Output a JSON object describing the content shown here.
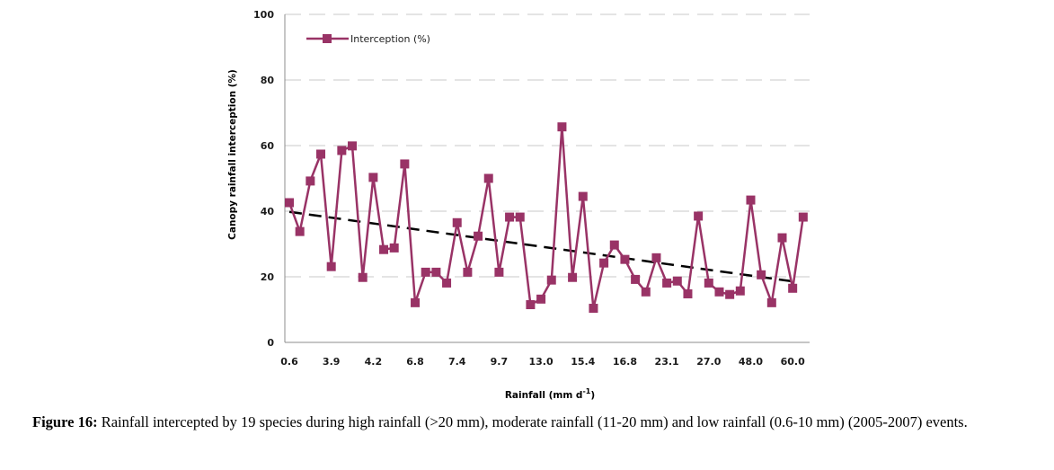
{
  "chart_data": {
    "type": "line",
    "title": "",
    "xlabel": "Rainfall (mm d",
    "xlabel_superscript": "-1",
    "xlabel_suffix": ")",
    "ylabel": "Canopy rainfall interception (%)",
    "ylim": [
      0,
      100
    ],
    "yticks": [
      0,
      20,
      40,
      60,
      80,
      100
    ],
    "grid": "horizontal dashed",
    "legend": {
      "position": "top-left",
      "entries": [
        "Interception (%)"
      ]
    },
    "x_tick_labels": [
      "0.6",
      "3.9",
      "4.2",
      "6.8",
      "7.4",
      "9.7",
      "13.0",
      "15.4",
      "16.8",
      "23.1",
      "27.0",
      "48.0",
      "60.0"
    ],
    "x_tick_every": 4,
    "series": [
      {
        "name": "Interception (%)",
        "color": "#993366",
        "marker": "square",
        "values": [
          42.6,
          33.8,
          49.2,
          57.4,
          23.1,
          58.5,
          59.9,
          19.8,
          50.3,
          28.3,
          28.8,
          54.4,
          12.1,
          21.4,
          21.4,
          18.1,
          36.5,
          21.4,
          32.4,
          50.0,
          21.4,
          38.2,
          38.2,
          11.5,
          13.2,
          19.0,
          65.7,
          19.8,
          44.5,
          10.4,
          24.2,
          29.7,
          25.3,
          19.2,
          15.4,
          25.8,
          18.1,
          18.7,
          14.8,
          38.5,
          18.1,
          15.4,
          14.6,
          15.7,
          43.4,
          20.6,
          12.1,
          31.9,
          16.5,
          38.2
        ]
      }
    ],
    "trendline": {
      "type": "linear",
      "style": "dashed",
      "color": "#000000",
      "start_value": 39.8,
      "end_value": 18.6,
      "start_index": 0,
      "end_index": 48
    }
  },
  "caption": {
    "label": "Figure 16:",
    "text": " Rainfall intercepted by 19 species during high rainfall (>20 mm), moderate rainfall (11-20 mm) and low rainfall (0.6-10 mm) (2005-2007) events."
  }
}
